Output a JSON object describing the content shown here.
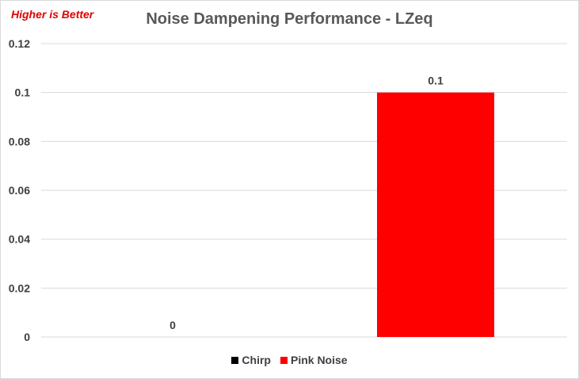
{
  "chart_data": {
    "type": "bar",
    "title": "Noise Dampening Performance - LZeq",
    "note": "Higher is Better",
    "categories": [
      ""
    ],
    "series": [
      {
        "name": "Chirp",
        "values": [
          0
        ],
        "color": "#000000"
      },
      {
        "name": "Pink Noise",
        "values": [
          0.1
        ],
        "color": "#ff0000"
      }
    ],
    "ylim": [
      0,
      0.12
    ],
    "yticks": [
      "0.12",
      "0.1",
      "0.08",
      "0.06",
      "0.04",
      "0.02",
      "0"
    ],
    "data_labels": [
      "0",
      "0.1"
    ],
    "grid": true,
    "legend_position": "bottom",
    "xlabel": "",
    "ylabel": ""
  }
}
